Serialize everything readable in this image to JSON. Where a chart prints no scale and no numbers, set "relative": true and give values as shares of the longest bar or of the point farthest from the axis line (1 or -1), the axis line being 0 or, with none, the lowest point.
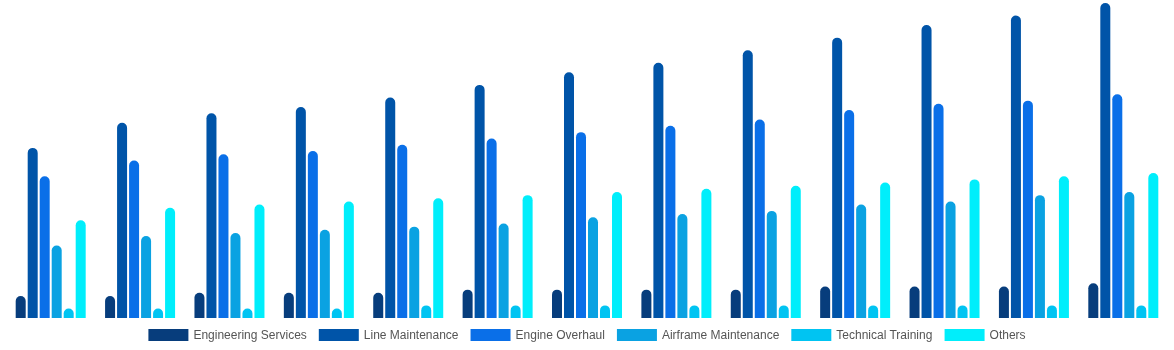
{
  "chart_data": {
    "type": "bar",
    "relative": true,
    "legend": "bottom",
    "categories": [
      null,
      null,
      null,
      null,
      null,
      null,
      null,
      null,
      null,
      null,
      null,
      null,
      null
    ],
    "series": [
      {
        "name": "Engineering Services",
        "color": "#073d7c",
        "values": [
          0.07,
          0.07,
          0.08,
          0.08,
          0.08,
          0.09,
          0.09,
          0.09,
          0.09,
          0.1,
          0.1,
          0.1,
          0.11
        ]
      },
      {
        "name": "Line Maintenance",
        "color": "#0054a8",
        "values": [
          0.54,
          0.62,
          0.65,
          0.67,
          0.7,
          0.74,
          0.78,
          0.81,
          0.85,
          0.89,
          0.93,
          0.96,
          1
        ]
      },
      {
        "name": "Engine Overhaul",
        "color": "#0a6fe8",
        "values": [
          0.45,
          0.5,
          0.52,
          0.53,
          0.55,
          0.57,
          0.59,
          0.61,
          0.63,
          0.66,
          0.68,
          0.69,
          0.71
        ]
      },
      {
        "name": "Airframe Maintenance",
        "color": "#0aa2e2",
        "values": [
          0.23,
          0.26,
          0.27,
          0.28,
          0.29,
          0.3,
          0.32,
          0.33,
          0.34,
          0.36,
          0.37,
          0.39,
          0.4
        ]
      },
      {
        "name": "Technical Training",
        "color": "#00c4f2",
        "values": [
          0.03,
          0.03,
          0.03,
          0.03,
          0.04,
          0.04,
          0.04,
          0.04,
          0.04,
          0.04,
          0.04,
          0.04,
          0.04
        ]
      },
      {
        "name": "Others",
        "color": "#00eefb",
        "values": [
          0.31,
          0.35,
          0.36,
          0.37,
          0.38,
          0.39,
          0.4,
          0.41,
          0.42,
          0.43,
          0.44,
          0.45,
          0.46
        ]
      }
    ]
  }
}
